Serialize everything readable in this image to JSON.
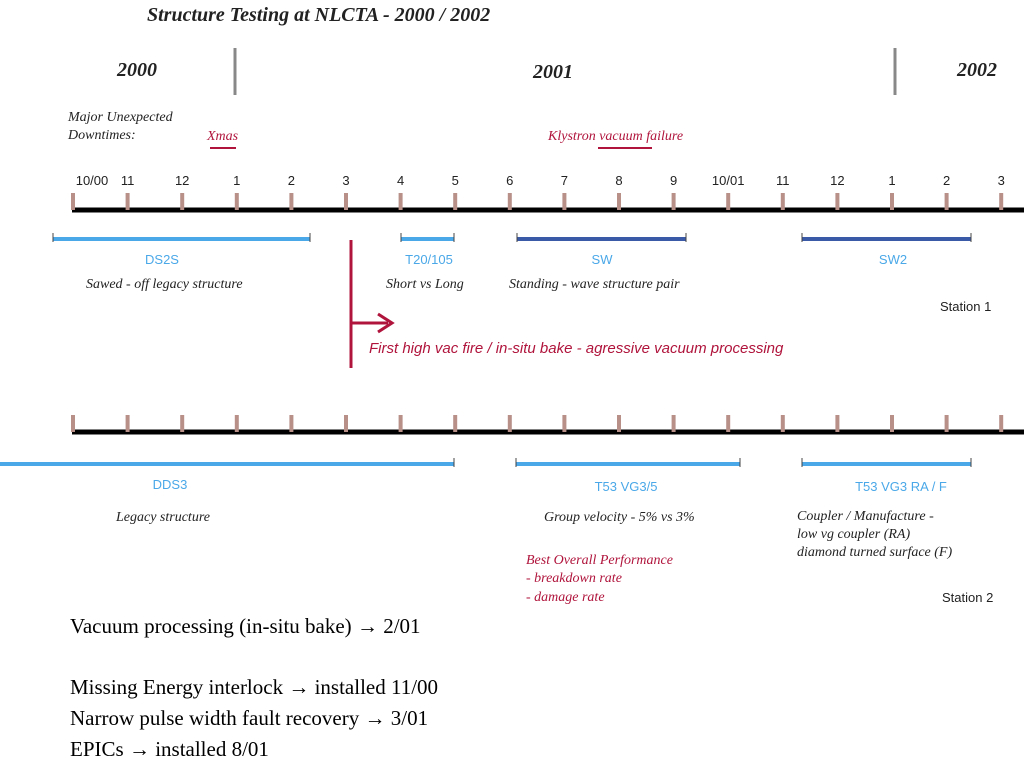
{
  "title": "Structure Testing at NLCTA - 2000 / 2002",
  "years": [
    "2000",
    "2001",
    "2002"
  ],
  "downtimes": {
    "label_line1": "Major Unexpected",
    "label_line2": "Downtimes:",
    "xmas": "Xmas",
    "klystron": "Klystron vacuum failure"
  },
  "months": [
    "10/00",
    "11",
    "12",
    "1",
    "2",
    "3",
    "4",
    "5",
    "6",
    "7",
    "8",
    "9",
    "10/01",
    "11",
    "12",
    "1",
    "2",
    "3"
  ],
  "station1": {
    "label": "Station 1",
    "bars": [
      {
        "name": "DS2S",
        "desc": "Sawed - off legacy structure",
        "color": "#4aa8e8"
      },
      {
        "name": "T20/105",
        "desc": "Short vs Long",
        "color": "#4aa8e8"
      },
      {
        "name": "SW",
        "desc": "Standing - wave structure pair",
        "color": "#3a5aa8"
      },
      {
        "name": "SW2",
        "desc": "",
        "color": "#3a5aa8"
      }
    ],
    "event": "First high vac fire / in-situ bake - agressive vacuum processing",
    "event_color": "#b0143c"
  },
  "station2": {
    "label": "Station 2",
    "bars": [
      {
        "name": "DDS3",
        "desc": "Legacy structure",
        "color": "#4aa8e8"
      },
      {
        "name": "T53 VG3/5",
        "desc": "Group velocity - 5% vs 3%",
        "color": "#4aa8e8"
      },
      {
        "name": "T53 VG3 RA / F",
        "desc": "",
        "color": "#4aa8e8"
      }
    ],
    "coupler_lines": [
      "Coupler / Manufacture -",
      "low vg coupler (RA)",
      "diamond turned surface (F)"
    ],
    "performance_lines": [
      "Best Overall Performance",
      "- breakdown rate",
      "- damage rate"
    ]
  },
  "notes": [
    {
      "text": "Vacuum processing (in-situ bake)",
      "result": "2/01"
    },
    {
      "text": "Missing Energy interlock",
      "result": "installed 11/00"
    },
    {
      "text": "Narrow pulse width fault recovery",
      "result": "3/01"
    },
    {
      "text": "EPICs",
      "result": "installed 8/01"
    }
  ],
  "arrow_glyph": "→"
}
